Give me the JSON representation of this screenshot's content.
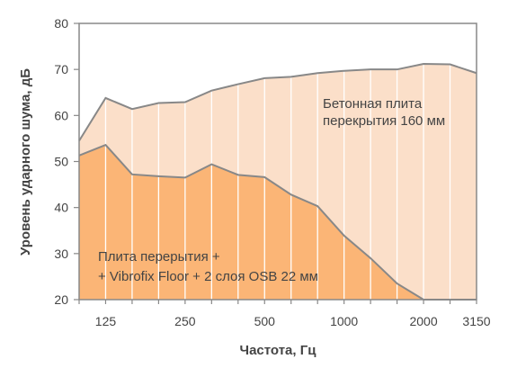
{
  "chart_data": {
    "type": "area",
    "ylabel": "Уровень ударного шума, дБ",
    "xlabel": "Частота, Гц",
    "ylim": [
      20,
      80
    ],
    "yticks": [
      20,
      30,
      40,
      50,
      60,
      70,
      80
    ],
    "x_bands": [
      "100",
      "125",
      "160",
      "200",
      "250",
      "315",
      "400",
      "500",
      "630",
      "800",
      "1000",
      "1250",
      "1600",
      "2000",
      "2500",
      "3150"
    ],
    "x_tick_labels": [
      "125",
      "250",
      "500",
      "1000",
      "2000",
      "3150"
    ],
    "grid": "vertical",
    "series": [
      {
        "name": "Бетонная плита перекрытия 160 мм",
        "values": [
          54.5,
          63.8,
          61.4,
          62.7,
          62.9,
          65.4,
          66.8,
          68.1,
          68.4,
          69.2,
          69.7,
          70.0,
          70.0,
          71.2,
          71.1,
          69.2
        ],
        "fill": "#fbdfc9",
        "stroke": "#888888"
      },
      {
        "name": "Плита перерытия + + Vibrofix Floor + 2 слоя OSB 22 мм",
        "values": [
          51.3,
          53.6,
          47.2,
          46.8,
          46.5,
          49.4,
          47.1,
          46.6,
          42.8,
          40.3,
          33.9,
          29.0,
          23.5,
          20.0,
          20.0,
          20.0
        ],
        "fill": "#fbb576",
        "stroke": "#888888"
      }
    ],
    "annotations": [
      {
        "lines": [
          "Бетонная плита",
          "перекрытия 160 мм"
        ]
      },
      {
        "lines": [
          "Плита перерытия +",
          "+ Vibrofix  Floor + 2 слоя OSB 22 мм"
        ]
      }
    ]
  }
}
